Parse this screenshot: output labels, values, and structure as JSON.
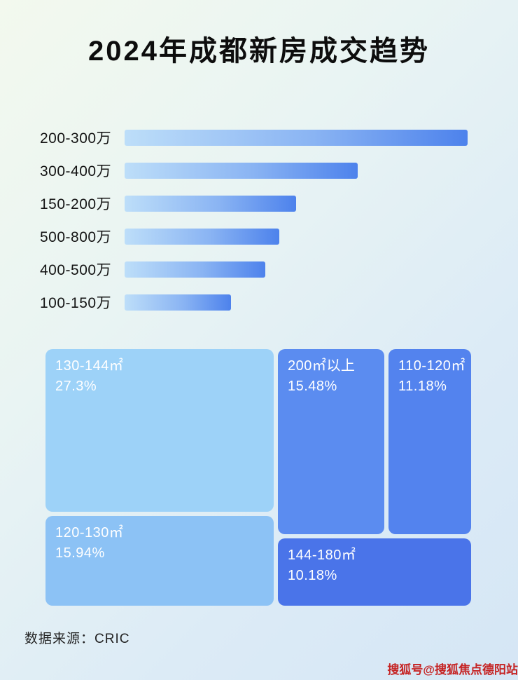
{
  "page": {
    "title": "2024年成都新房成交趋势",
    "source": "数据来源：CRIC",
    "watermark": "搜狐号@搜狐焦点德阳站"
  },
  "colors": {
    "bar_gradient_start": "#bddef9",
    "bar_gradient_end": "#4d82ec",
    "treemap_light_1": "#9dd2f8",
    "treemap_light_2": "#8cc2f5",
    "treemap_mid_1": "#5b8cf0",
    "treemap_mid_2": "#5383ee",
    "treemap_dark": "#4a74e9",
    "watermark_red": "#c52222",
    "title_text": "#0d0d0d"
  },
  "chart_data": [
    {
      "type": "bar",
      "orientation": "horizontal",
      "title": "2024年成都新房成交趋势",
      "categories": [
        "200-300万",
        "300-400万",
        "150-200万",
        "500-800万",
        "400-500万",
        "100-150万"
      ],
      "values": [
        100,
        68,
        50,
        45,
        41,
        31
      ],
      "value_note": "relative bar length, percent of longest bar; no numeric axis shown in image",
      "xlabel": "",
      "ylabel": "",
      "grid": false,
      "legend": false
    },
    {
      "type": "treemap",
      "title": "",
      "blocks": [
        {
          "label": "130-144㎡",
          "pct": "27.3%",
          "value": 27.3
        },
        {
          "label": "200㎡以上",
          "pct": "15.48%",
          "value": 15.48
        },
        {
          "label": "110-120㎡",
          "pct": "11.18%",
          "value": 11.18
        },
        {
          "label": "120-130㎡",
          "pct": "15.94%",
          "value": 15.94
        },
        {
          "label": "144-180㎡",
          "pct": "10.18%",
          "value": 10.18
        }
      ]
    }
  ]
}
